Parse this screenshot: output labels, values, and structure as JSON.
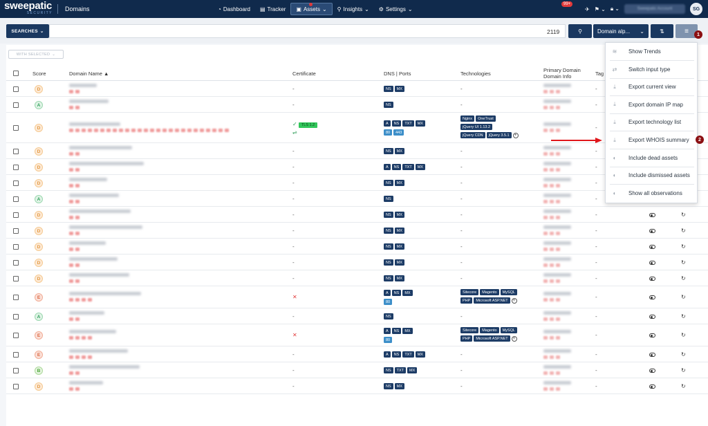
{
  "header": {
    "logo_main": "sweepatic",
    "logo_sub": "SECURITY",
    "page_title": "Domains",
    "nav": [
      {
        "label": "Dashboard",
        "icon": "◔"
      },
      {
        "label": "Tracker",
        "icon": "▤"
      },
      {
        "label": "Assets",
        "icon": "▣",
        "active": true
      },
      {
        "label": "Insights",
        "icon": "⚲"
      },
      {
        "label": "Settings",
        "icon": "⚙"
      }
    ],
    "notif_badge": "99+",
    "account_name": "Sweepatic Account",
    "avatar": "SG"
  },
  "search": {
    "searches_label": "SEARCHES",
    "result_count": "2119",
    "sort_label": "Domain alp..."
  },
  "markers": {
    "one": "1",
    "two": "2"
  },
  "table": {
    "with_selected": "WITH SELECTED",
    "headers": {
      "score": "Score",
      "domain": "Domain Name",
      "certificate": "Certificate",
      "dns": "DNS | Ports",
      "technologies": "Technologies",
      "primary1": "Primary Domain",
      "primary2": "Domain Info",
      "tags": "Tag"
    },
    "dash": "-",
    "cert_tls": "TLS 1.2",
    "rows": [
      {
        "score": "D",
        "dns": [
          "NS",
          "MX"
        ],
        "tech": []
      },
      {
        "score": "A",
        "dns": [
          "NS"
        ],
        "tech": []
      },
      {
        "score": "D",
        "dns": [
          "A",
          "NS",
          "TXT",
          "MX"
        ],
        "ports": [
          "80",
          "443"
        ],
        "tech": [
          [
            "Nginx",
            "OneTrust"
          ],
          [
            "jQuery UI 1.13.2"
          ],
          [
            "jQuery CDN",
            "jQuery 3.5.1"
          ]
        ]
      },
      {
        "score": "D",
        "dns": [
          "NS",
          "MX"
        ],
        "tech": []
      },
      {
        "score": "D",
        "dns": [
          "A",
          "NS",
          "TXT",
          "MX"
        ],
        "tech": []
      },
      {
        "score": "D",
        "dns": [
          "NS",
          "MX"
        ],
        "tech": []
      },
      {
        "score": "A",
        "dns": [
          "NS"
        ],
        "tech": []
      },
      {
        "score": "D",
        "dns": [
          "NS",
          "MX"
        ],
        "tech": []
      },
      {
        "score": "D",
        "dns": [
          "NS",
          "MX"
        ],
        "tech": []
      },
      {
        "score": "D",
        "dns": [
          "NS",
          "MX"
        ],
        "tech": []
      },
      {
        "score": "D",
        "dns": [
          "NS",
          "MX"
        ],
        "tech": []
      },
      {
        "score": "D",
        "dns": [
          "NS",
          "MX"
        ],
        "tech": []
      },
      {
        "score": "E",
        "dns": [
          "A",
          "NS",
          "MX"
        ],
        "ports": [
          "80"
        ],
        "tech": [
          [
            "Sitecore",
            "Magento",
            "MySQL"
          ],
          [
            "PHP",
            "Microsoft ASP.NET"
          ]
        ]
      },
      {
        "score": "A",
        "dns": [
          "NS"
        ],
        "tech": []
      },
      {
        "score": "E",
        "dns": [
          "A",
          "NS",
          "MX"
        ],
        "ports": [
          "80"
        ],
        "tech": [
          [
            "Sitecore",
            "Magento",
            "MySQL"
          ],
          [
            "PHP",
            "Microsoft ASP.NET"
          ]
        ]
      },
      {
        "score": "E",
        "dns": [
          "A",
          "NS",
          "TXT",
          "MX"
        ],
        "tech": []
      },
      {
        "score": "B",
        "dns": [
          "NS",
          "TXT",
          "MX"
        ],
        "tech": []
      },
      {
        "score": "D",
        "dns": [
          "NS",
          "MX"
        ],
        "tech": []
      }
    ]
  },
  "menu": {
    "items": [
      {
        "label": "Show Trends",
        "icon": "≋"
      },
      {
        "label": "Switch input type",
        "icon": "⇄"
      },
      {
        "label": "Export current view",
        "icon": "⤓"
      },
      {
        "label": "Export domain IP map",
        "icon": "⤓"
      },
      {
        "label": "Export technology list",
        "icon": "⤓"
      },
      {
        "label": "Export WHOIS summary",
        "icon": "⤓"
      },
      {
        "label": "Include dead assets",
        "icon": "◐"
      },
      {
        "label": "Include dismissed assets",
        "icon": "◐"
      },
      {
        "label": "Show all observations",
        "icon": "◐"
      }
    ]
  },
  "colors": {
    "navy": "#102a4c",
    "accent": "#1a3860",
    "marker": "#8b0f12",
    "arrow": "#e0161b"
  }
}
